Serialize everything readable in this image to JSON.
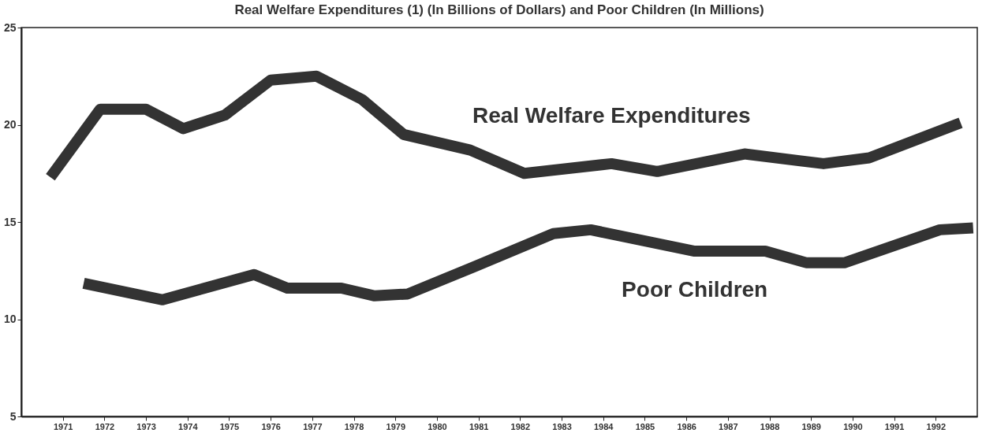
{
  "chart_data": {
    "type": "line",
    "title": "Real Welfare Expenditures (1) (In Billions of Dollars) and Poor Children (In Millions)",
    "xlim": [
      1970,
      1993
    ],
    "xticks": [
      1971,
      1972,
      1973,
      1974,
      1975,
      1976,
      1977,
      1978,
      1979,
      1980,
      1981,
      1982,
      1983,
      1984,
      1985,
      1986,
      1987,
      1988,
      1989,
      1990,
      1991,
      1992
    ],
    "ylim": [
      5,
      25
    ],
    "yticks": [
      5,
      10,
      15,
      20,
      25
    ],
    "grid": false,
    "legend": false,
    "line_style": "solid",
    "marker": "none",
    "series": [
      {
        "name": "Real Welfare Expenditures",
        "color": "#333333",
        "x": [
          1970.7,
          1971.9,
          1973.0,
          1973.9,
          1974.9,
          1976.0,
          1977.1,
          1978.2,
          1979.2,
          1980.8,
          1982.1,
          1984.2,
          1985.3,
          1987.4,
          1989.3,
          1990.4,
          1992.6
        ],
        "values": [
          17.3,
          20.8,
          20.8,
          19.8,
          20.5,
          22.3,
          22.5,
          21.3,
          19.5,
          18.7,
          17.5,
          18.0,
          17.6,
          18.5,
          18.0,
          18.3,
          20.1
        ]
      },
      {
        "name": "Poor Children",
        "color": "#333333",
        "x": [
          1971.5,
          1973.4,
          1975.6,
          1976.4,
          1977.7,
          1978.5,
          1979.3,
          1980.9,
          1982.8,
          1983.7,
          1986.2,
          1987.9,
          1988.9,
          1989.8,
          1992.1,
          1992.9
        ],
        "values": [
          11.85,
          11.0,
          12.3,
          11.6,
          11.6,
          11.2,
          11.3,
          12.7,
          14.4,
          14.6,
          13.5,
          13.5,
          12.9,
          12.9,
          14.6,
          14.7
        ]
      }
    ]
  }
}
